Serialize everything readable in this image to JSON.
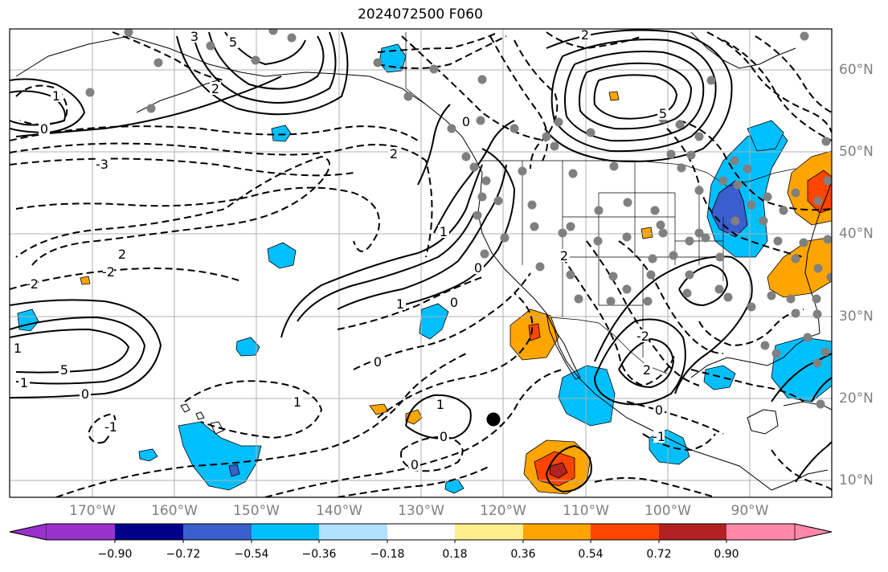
{
  "title": "2024072500 F060",
  "lat_labels": [
    "60°N",
    "50°N",
    "40°N",
    "30°N",
    "20°N",
    "10°N"
  ],
  "lon_labels": [
    "170°W",
    "160°W",
    "150°W",
    "140°W",
    "130°W",
    "120°W",
    "110°W",
    "100°W",
    "90°W"
  ],
  "colorbar": {
    "ticks": [
      "−0.90",
      "−0.72",
      "−0.54",
      "−0.36",
      "−0.18",
      "0.18",
      "0.36",
      "0.54",
      "0.72",
      "0.90"
    ],
    "colors": [
      "#9932cc",
      "#00008b",
      "#3a5fcd",
      "#00bfff",
      "#b0e2ff",
      "#ffffff",
      "#ffec8b",
      "#ffa500",
      "#ff4500",
      "#b22222",
      "#ff88aa"
    ]
  },
  "contour_labels": [
    "3",
    "5",
    "2",
    "1",
    "0",
    "-1",
    "-2",
    "-3",
    "5",
    "2",
    "0",
    "-1",
    "-2",
    "-3",
    "1",
    "2",
    "0",
    "-1",
    "-2",
    "1",
    "0",
    "-1",
    "2",
    "0",
    "-2",
    "2",
    "-2",
    "1",
    "0",
    "-1",
    "-2",
    "2",
    "0",
    "-1",
    "0",
    "-1",
    "1"
  ],
  "colors": {
    "grid": "#b0b0b0",
    "coast": "#000000",
    "dot": "#808080",
    "marker": "#000000"
  }
}
